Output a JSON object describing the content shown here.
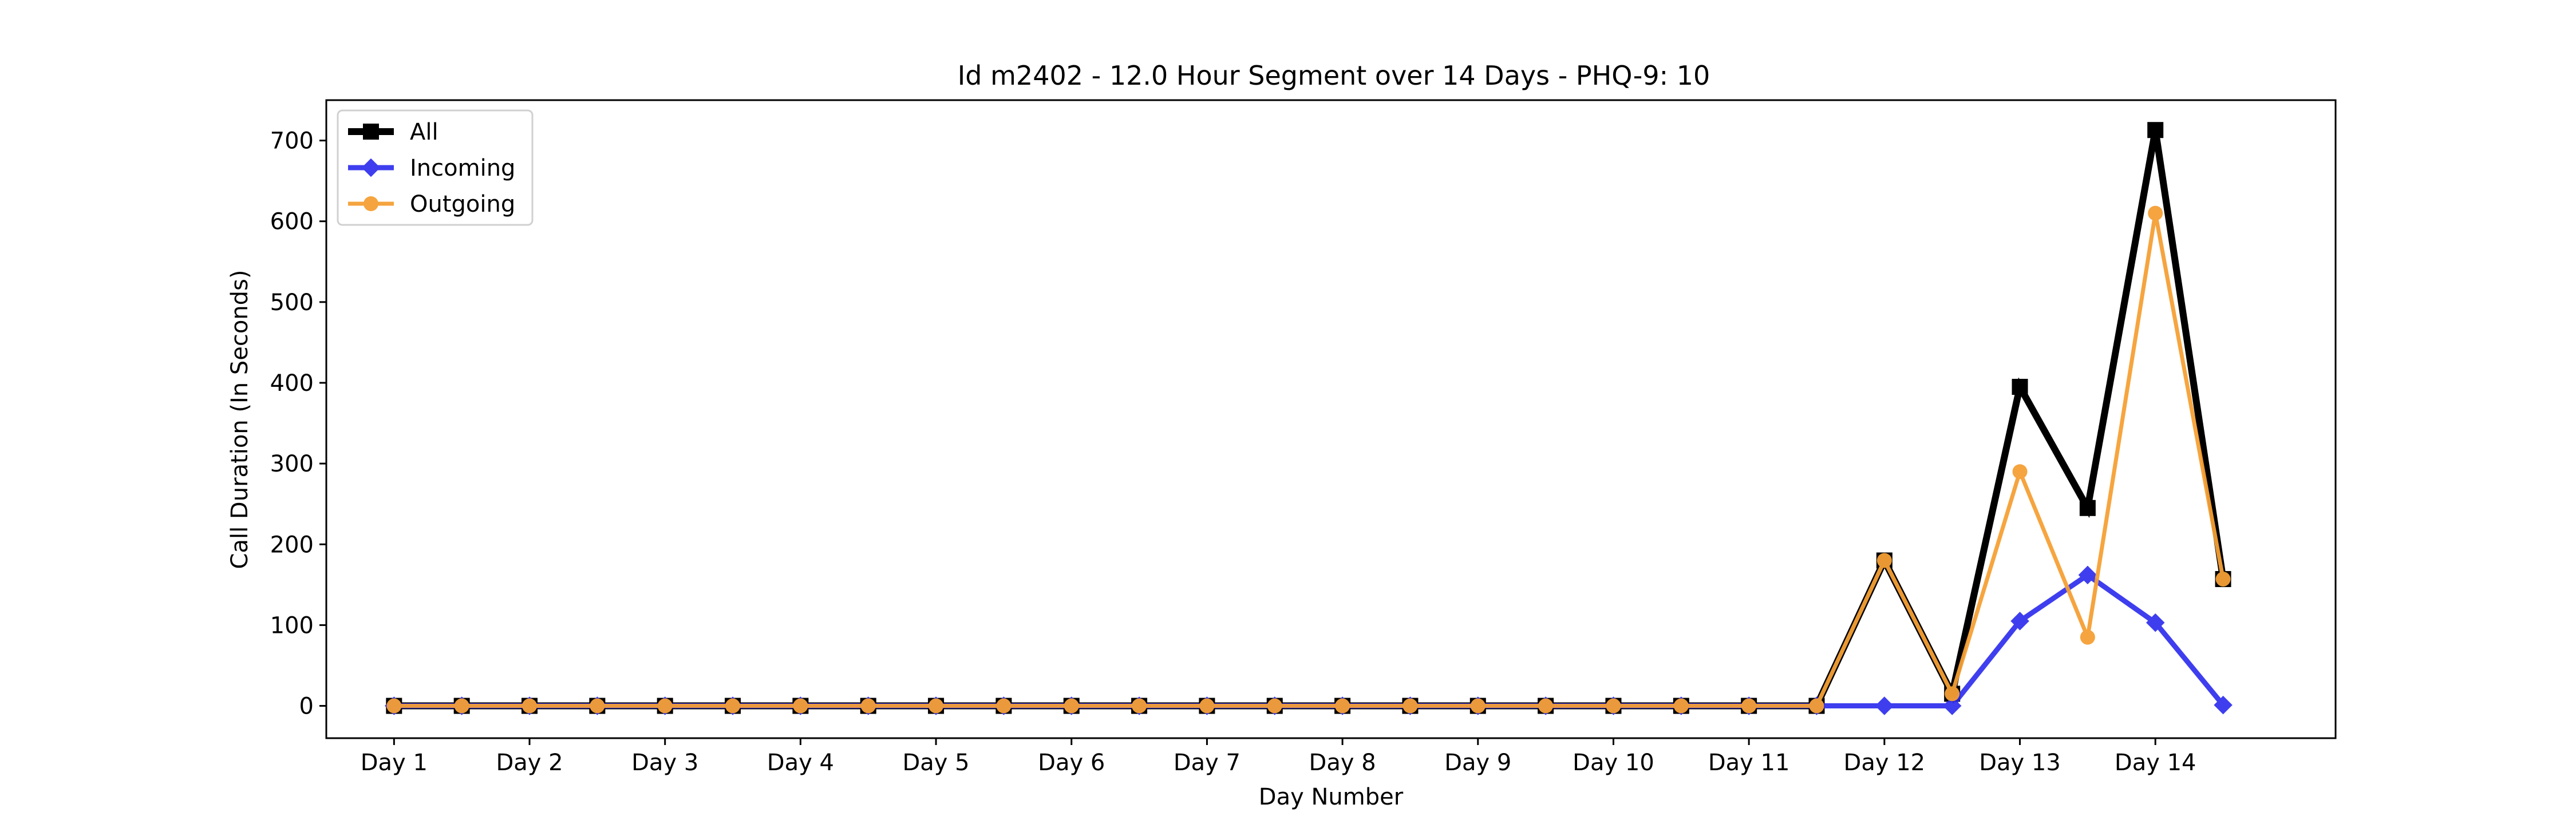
{
  "chart_data": {
    "type": "line",
    "title": "Id m2402 - 12.0 Hour Segment over 14 Days - PHQ-9: 10",
    "xlabel": "Day Number",
    "ylabel": "Call Duration (In Seconds)",
    "ylim": [
      -40,
      750
    ],
    "yticks": [
      0,
      100,
      200,
      300,
      400,
      500,
      600,
      700
    ],
    "xlim": [
      0.5,
      15.33
    ],
    "xtick_labels": [
      "Day 1",
      "Day 2",
      "Day 3",
      "Day 4",
      "Day 5",
      "Day 6",
      "Day 7",
      "Day 8",
      "Day 9",
      "Day 10",
      "Day 11",
      "Day 12",
      "Day 13",
      "Day 14"
    ],
    "x": [
      1,
      1.5,
      2,
      2.5,
      3,
      3.5,
      4,
      4.5,
      5,
      5.5,
      6,
      6.5,
      7,
      7.5,
      8,
      8.5,
      9,
      9.5,
      10,
      10.5,
      11,
      11.5,
      12,
      12.5,
      13,
      13.5,
      14,
      14.5
    ],
    "legend_position": "top-left",
    "grid": false,
    "series": [
      {
        "name": "All",
        "color": "#000000",
        "marker": "square",
        "values": [
          0,
          0,
          0,
          0,
          0,
          0,
          0,
          0,
          0,
          0,
          0,
          0,
          0,
          0,
          0,
          0,
          0,
          0,
          0,
          0,
          0,
          0,
          180,
          15,
          395,
          245,
          713,
          157
        ]
      },
      {
        "name": "Incoming",
        "color": "#2a2aee",
        "marker": "diamond",
        "values": [
          0,
          0,
          0,
          0,
          0,
          0,
          0,
          0,
          0,
          0,
          0,
          0,
          0,
          0,
          0,
          0,
          0,
          0,
          0,
          0,
          0,
          0,
          0,
          0,
          105,
          162,
          103,
          1
        ]
      },
      {
        "name": "Outgoing",
        "color": "#f5a035",
        "marker": "circle",
        "values": [
          0,
          0,
          0,
          0,
          0,
          0,
          0,
          0,
          0,
          0,
          0,
          0,
          0,
          0,
          0,
          0,
          0,
          0,
          0,
          0,
          0,
          0,
          180,
          15,
          290,
          85,
          610,
          157
        ]
      }
    ]
  }
}
